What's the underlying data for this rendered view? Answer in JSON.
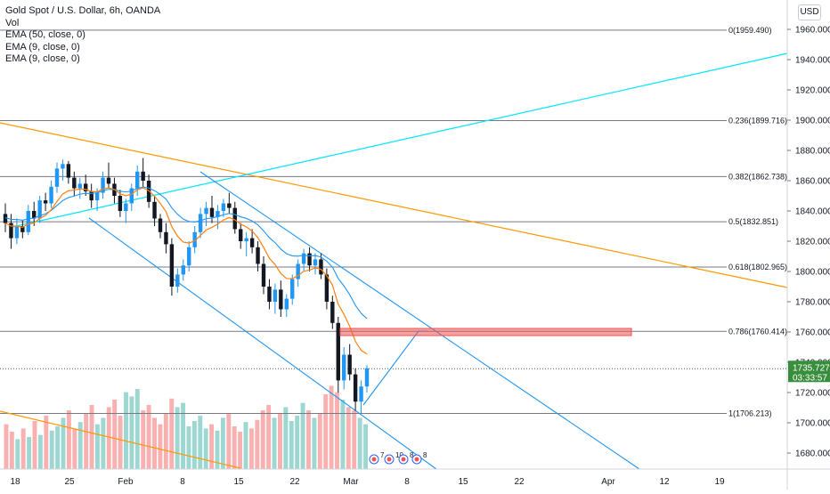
{
  "header": {
    "title": "Gold Spot / U.S. Dollar, 6h, OANDA",
    "indicators": [
      "Vol",
      "EMA (50, close, 0)",
      "EMA (9, close, 0)",
      "EMA (9, close, 0)"
    ],
    "currency_button": "USD"
  },
  "colors": {
    "up": "#26a69a",
    "down": "#ef5350",
    "ema_slow": "#2196f3",
    "ema_fast": "#ff7f0e",
    "orange_trend": "#ff9800",
    "cyan_trend": "#00e5ff",
    "channel": "#2196f3",
    "fib_line": "#787b86",
    "zone": "#ef5350",
    "price_label_bg": "#388e3c"
  },
  "chart_data": {
    "type": "candlestick",
    "symbol": "Gold Spot / U.S. Dollar",
    "interval": "6h",
    "exchange": "OANDA",
    "x_tick_labels": [
      "18",
      "25",
      "Feb",
      "8",
      "15",
      "22",
      "Mar",
      "8",
      "15",
      "22",
      "Apr",
      "12",
      "19"
    ],
    "y_tick_labels": [
      "1960.000",
      "1940.000",
      "1920.000",
      "1900.000",
      "1880.000",
      "1860.000",
      "1840.000",
      "1820.000",
      "1800.000",
      "1780.000",
      "1760.000",
      "1740.000",
      "1720.000",
      "1700.000",
      "1680.000"
    ],
    "ylim": [
      1668,
      1972
    ],
    "last_price": "1735.727",
    "countdown": "03:33:57",
    "fibonacci": [
      {
        "level": "0",
        "price": 1959.49,
        "label": "0(1959.490)"
      },
      {
        "level": "0.236",
        "price": 1899.716,
        "label": "0.236(1899.716)"
      },
      {
        "level": "0.382",
        "price": 1862.738,
        "label": "0.382(1862.738)"
      },
      {
        "level": "0.5",
        "price": 1832.851,
        "label": "0.5(1832.851)"
      },
      {
        "level": "0.618",
        "price": 1802.965,
        "label": "0.618(1802.965)"
      },
      {
        "level": "0.786",
        "price": 1760.414,
        "label": "0.786(1760.414)"
      },
      {
        "level": "1",
        "price": 1706.213,
        "label": "1(1706.213)"
      }
    ],
    "events": [
      "7",
      "10",
      "8",
      "8"
    ],
    "candles": [
      [
        1838,
        1845,
        1826,
        1832
      ],
      [
        1832,
        1838,
        1815,
        1822
      ],
      [
        1822,
        1835,
        1818,
        1830
      ],
      [
        1830,
        1834,
        1822,
        1826
      ],
      [
        1826,
        1844,
        1824,
        1840
      ],
      [
        1840,
        1846,
        1830,
        1835
      ],
      [
        1835,
        1850,
        1832,
        1847
      ],
      [
        1847,
        1852,
        1840,
        1845
      ],
      [
        1845,
        1860,
        1842,
        1856
      ],
      [
        1856,
        1872,
        1852,
        1868
      ],
      [
        1868,
        1874,
        1860,
        1871
      ],
      [
        1871,
        1873,
        1858,
        1862
      ],
      [
        1862,
        1866,
        1850,
        1855
      ],
      [
        1855,
        1862,
        1848,
        1858
      ],
      [
        1858,
        1864,
        1850,
        1853
      ],
      [
        1853,
        1858,
        1842,
        1847
      ],
      [
        1847,
        1855,
        1840,
        1852
      ],
      [
        1852,
        1866,
        1848,
        1862
      ],
      [
        1862,
        1872,
        1855,
        1858
      ],
      [
        1858,
        1862,
        1845,
        1850
      ],
      [
        1850,
        1854,
        1836,
        1840
      ],
      [
        1840,
        1848,
        1832,
        1845
      ],
      [
        1845,
        1858,
        1840,
        1855
      ],
      [
        1855,
        1870,
        1850,
        1866
      ],
      [
        1866,
        1875,
        1855,
        1860
      ],
      [
        1860,
        1864,
        1842,
        1846
      ],
      [
        1846,
        1850,
        1830,
        1835
      ],
      [
        1835,
        1838,
        1822,
        1826
      ],
      [
        1826,
        1832,
        1812,
        1818
      ],
      [
        1818,
        1822,
        1784,
        1790
      ],
      [
        1790,
        1802,
        1786,
        1798
      ],
      [
        1798,
        1808,
        1794,
        1804
      ],
      [
        1804,
        1820,
        1800,
        1816
      ],
      [
        1816,
        1830,
        1812,
        1826
      ],
      [
        1826,
        1842,
        1822,
        1838
      ],
      [
        1838,
        1846,
        1830,
        1842
      ],
      [
        1842,
        1850,
        1832,
        1836
      ],
      [
        1836,
        1844,
        1828,
        1840
      ],
      [
        1840,
        1848,
        1836,
        1845
      ],
      [
        1845,
        1852,
        1838,
        1842
      ],
      [
        1842,
        1846,
        1825,
        1828
      ],
      [
        1828,
        1832,
        1815,
        1820
      ],
      [
        1820,
        1826,
        1810,
        1822
      ],
      [
        1822,
        1828,
        1812,
        1816
      ],
      [
        1816,
        1820,
        1800,
        1805
      ],
      [
        1805,
        1810,
        1785,
        1790
      ],
      [
        1790,
        1795,
        1775,
        1780
      ],
      [
        1780,
        1792,
        1772,
        1788
      ],
      [
        1788,
        1794,
        1770,
        1775
      ],
      [
        1775,
        1785,
        1770,
        1782
      ],
      [
        1782,
        1798,
        1778,
        1795
      ],
      [
        1795,
        1808,
        1790,
        1805
      ],
      [
        1805,
        1815,
        1800,
        1812
      ],
      [
        1812,
        1816,
        1800,
        1804
      ],
      [
        1804,
        1812,
        1798,
        1808
      ],
      [
        1808,
        1812,
        1795,
        1798
      ],
      [
        1798,
        1802,
        1775,
        1780
      ],
      [
        1780,
        1784,
        1762,
        1766
      ],
      [
        1766,
        1770,
        1720,
        1728
      ],
      [
        1728,
        1750,
        1722,
        1745
      ],
      [
        1745,
        1752,
        1728,
        1732
      ],
      [
        1732,
        1736,
        1708,
        1714
      ],
      [
        1714,
        1728,
        1706,
        1724
      ],
      [
        1724,
        1738,
        1720,
        1736
      ]
    ],
    "volumes": [
      42,
      35,
      28,
      38,
      30,
      45,
      32,
      50,
      36,
      40,
      48,
      55,
      38,
      44,
      52,
      60,
      42,
      48,
      58,
      65,
      50,
      72,
      68,
      75,
      55,
      60,
      48,
      42,
      52,
      66,
      58,
      62,
      40,
      45,
      50,
      38,
      42,
      36,
      48,
      52,
      40,
      35,
      44,
      38,
      46,
      55,
      60,
      48,
      52,
      58,
      45,
      50,
      62,
      55,
      48,
      52,
      70,
      78,
      72,
      65,
      58,
      55,
      48,
      42
    ]
  }
}
